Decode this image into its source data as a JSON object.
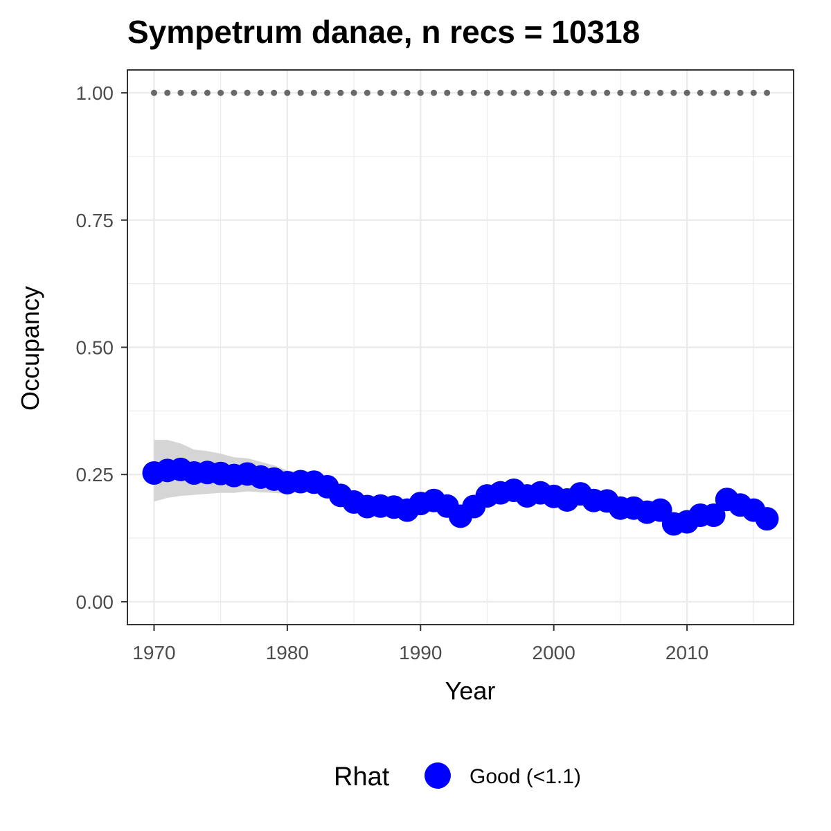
{
  "chart_data": {
    "type": "line",
    "title": "Sympetrum danae, n recs = 10318",
    "xlabel": "Year",
    "ylabel": "Occupancy",
    "xlim": [
      1968,
      2018
    ],
    "ylim": [
      -0.045,
      1.045
    ],
    "x_ticks": [
      1970,
      1980,
      1990,
      2000,
      2010
    ],
    "x_tick_labels": [
      "1970",
      "1980",
      "1990",
      "2000",
      "2010"
    ],
    "y_ticks": [
      0,
      0.25,
      0.5,
      0.75,
      1.0
    ],
    "y_tick_labels": [
      "0.00",
      "0.25",
      "0.50",
      "0.75",
      "1.00"
    ],
    "grid": true,
    "legend": {
      "title": "Rhat",
      "position": "bottom",
      "entries": [
        {
          "label": "Good (<1.1)",
          "color": "#0000ff"
        }
      ]
    },
    "colors": {
      "points": "#0000ff",
      "ribbon": "#d3d3d3",
      "reference": "#696969",
      "grid": "#ebebeb",
      "panel_border": "#333333"
    },
    "series": [
      {
        "name": "Good (<1.1)",
        "x": [
          1970,
          1971,
          1972,
          1973,
          1974,
          1975,
          1976,
          1977,
          1978,
          1979,
          1980,
          1981,
          1982,
          1983,
          1984,
          1985,
          1986,
          1987,
          1988,
          1989,
          1990,
          1991,
          1992,
          1993,
          1994,
          1995,
          1996,
          1997,
          1998,
          1999,
          2000,
          2001,
          2002,
          2003,
          2004,
          2005,
          2006,
          2007,
          2008,
          2009,
          2010,
          2011,
          2012,
          2013,
          2014,
          2015,
          2016
        ],
        "y": [
          0.253,
          0.258,
          0.26,
          0.253,
          0.254,
          0.252,
          0.248,
          0.251,
          0.245,
          0.241,
          0.234,
          0.236,
          0.235,
          0.226,
          0.209,
          0.196,
          0.187,
          0.188,
          0.186,
          0.18,
          0.193,
          0.199,
          0.188,
          0.168,
          0.187,
          0.208,
          0.214,
          0.219,
          0.208,
          0.214,
          0.207,
          0.2,
          0.212,
          0.199,
          0.198,
          0.184,
          0.184,
          0.176,
          0.18,
          0.153,
          0.157,
          0.17,
          0.17,
          0.201,
          0.19,
          0.18,
          0.163
        ],
        "lower": [
          0.197,
          0.204,
          0.208,
          0.21,
          0.212,
          0.214,
          0.214,
          0.217,
          0.215,
          0.214,
          0.212,
          0.219,
          0.221,
          0.215,
          0.201,
          0.19,
          0.181,
          0.182,
          0.181,
          0.175,
          0.188,
          0.194,
          0.183,
          0.164,
          0.182,
          0.203,
          0.209,
          0.214,
          0.203,
          0.209,
          0.202,
          0.195,
          0.207,
          0.194,
          0.193,
          0.179,
          0.179,
          0.171,
          0.175,
          0.149,
          0.153,
          0.166,
          0.166,
          0.196,
          0.185,
          0.175,
          0.158
        ],
        "upper": [
          0.318,
          0.318,
          0.311,
          0.299,
          0.296,
          0.291,
          0.284,
          0.282,
          0.275,
          0.268,
          0.258,
          0.254,
          0.25,
          0.238,
          0.218,
          0.202,
          0.193,
          0.194,
          0.191,
          0.185,
          0.198,
          0.204,
          0.193,
          0.173,
          0.192,
          0.213,
          0.219,
          0.224,
          0.213,
          0.219,
          0.212,
          0.205,
          0.217,
          0.204,
          0.203,
          0.189,
          0.189,
          0.181,
          0.185,
          0.158,
          0.162,
          0.175,
          0.175,
          0.206,
          0.195,
          0.185,
          0.168
        ]
      },
      {
        "name": "",
        "x": [
          1970,
          1971,
          1972,
          1973,
          1974,
          1975,
          1976,
          1977,
          1978,
          1979,
          1980,
          1981,
          1982,
          1983,
          1984,
          1985,
          1986,
          1987,
          1988,
          1989,
          1990,
          1991,
          1992,
          1993,
          1994,
          1995,
          1996,
          1997,
          1998,
          1999,
          2000,
          2001,
          2002,
          2003,
          2004,
          2005,
          2006,
          2007,
          2008,
          2009,
          2010,
          2011,
          2012,
          2013,
          2014,
          2015,
          2016
        ],
        "y": [
          1,
          1,
          1,
          1,
          1,
          1,
          1,
          1,
          1,
          1,
          1,
          1,
          1,
          1,
          1,
          1,
          1,
          1,
          1,
          1,
          1,
          1,
          1,
          1,
          1,
          1,
          1,
          1,
          1,
          1,
          1,
          1,
          1,
          1,
          1,
          1,
          1,
          1,
          1,
          1,
          1,
          1,
          1,
          1,
          1,
          1,
          1
        ]
      }
    ]
  }
}
